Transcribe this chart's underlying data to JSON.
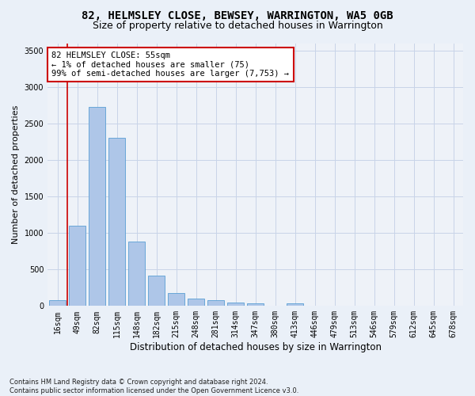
{
  "title_line1": "82, HELMSLEY CLOSE, BEWSEY, WARRINGTON, WA5 0GB",
  "title_line2": "Size of property relative to detached houses in Warrington",
  "xlabel": "Distribution of detached houses by size in Warrington",
  "ylabel": "Number of detached properties",
  "footnote": "Contains HM Land Registry data © Crown copyright and database right 2024.\nContains public sector information licensed under the Open Government Licence v3.0.",
  "categories": [
    "16sqm",
    "49sqm",
    "82sqm",
    "115sqm",
    "148sqm",
    "182sqm",
    "215sqm",
    "248sqm",
    "281sqm",
    "314sqm",
    "347sqm",
    "380sqm",
    "413sqm",
    "446sqm",
    "479sqm",
    "513sqm",
    "546sqm",
    "579sqm",
    "612sqm",
    "645sqm",
    "678sqm"
  ],
  "values": [
    75,
    1100,
    2730,
    2310,
    880,
    420,
    175,
    100,
    75,
    50,
    35,
    0,
    35,
    0,
    0,
    0,
    0,
    0,
    0,
    0,
    0
  ],
  "bar_color": "#aec6e8",
  "bar_edge_color": "#5a9fd4",
  "vline_x": 0.5,
  "vline_color": "#cc0000",
  "annotation_text": "82 HELMSLEY CLOSE: 55sqm\n← 1% of detached houses are smaller (75)\n99% of semi-detached houses are larger (7,753) →",
  "annotation_box_color": "#ffffff",
  "annotation_box_edge_color": "#cc0000",
  "ylim": [
    0,
    3600
  ],
  "yticks": [
    0,
    500,
    1000,
    1500,
    2000,
    2500,
    3000,
    3500
  ],
  "bg_color": "#eaf0f8",
  "plot_bg_color": "#eef2f8",
  "grid_color": "#c8d4e8",
  "title_fontsize": 10,
  "subtitle_fontsize": 9,
  "tick_fontsize": 7,
  "ylabel_fontsize": 8,
  "xlabel_fontsize": 8.5,
  "annot_fontsize": 7.5
}
